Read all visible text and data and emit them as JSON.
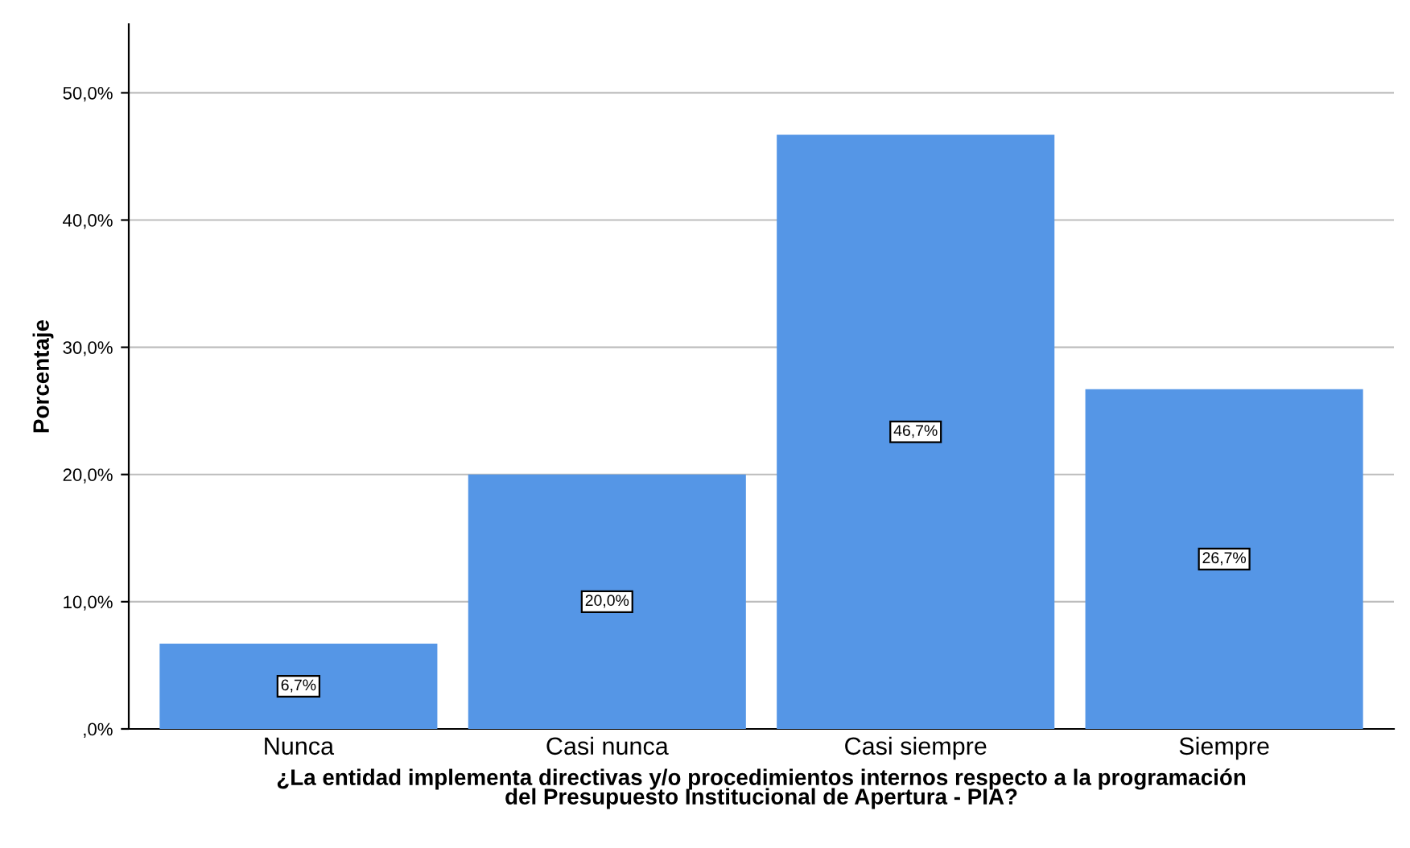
{
  "chart_data": {
    "type": "bar",
    "xlabel": "¿La entidad implementa directivas y/o procedimientos internos respecto a la programación\ndel Presupuesto Institucional de Apertura - PIA?",
    "ylabel": "Porcentaje",
    "categories": [
      "Nunca",
      "Casi nunca",
      "Casi siempre",
      "Siempre"
    ],
    "values": [
      6.7,
      20.0,
      46.7,
      26.7
    ],
    "color": "#5596e6",
    "value_labels": [
      "6,7%",
      "20,0%",
      "46,7%",
      "26,7%"
    ],
    "ylim": [
      0,
      55.4
    ],
    "yticks": [
      {
        "value": 0,
        "label": ",0%"
      },
      {
        "value": 10,
        "label": "10,0%"
      },
      {
        "value": 20,
        "label": "20,0%"
      },
      {
        "value": 30,
        "label": "30,0%"
      },
      {
        "value": 40,
        "label": "40,0%"
      },
      {
        "value": 50,
        "label": "50,0%"
      }
    ],
    "grid": "y",
    "legend": false
  }
}
